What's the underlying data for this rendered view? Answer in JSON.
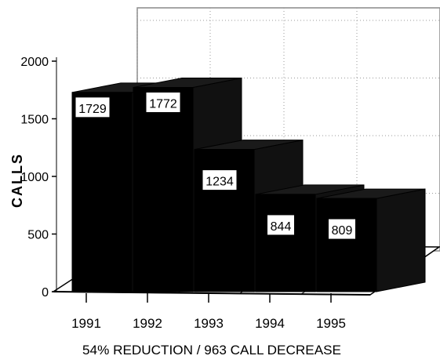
{
  "chart_data": {
    "type": "bar",
    "title": "",
    "xlabel": "54% REDUCTION / 963 CALL DECREASE",
    "ylabel": "CALLS",
    "categories": [
      "1991",
      "1992",
      "1993",
      "1994",
      "1995"
    ],
    "values": [
      1729,
      1772,
      1234,
      844,
      809
    ],
    "data_labels": [
      "1729",
      "1772",
      "1234",
      "844",
      "809"
    ],
    "yticks": [
      "0",
      "500",
      "1000",
      "1500",
      "2000"
    ],
    "ylim": [
      0,
      2000
    ],
    "grid": true,
    "style": "3d",
    "bar_color": "#000000"
  }
}
